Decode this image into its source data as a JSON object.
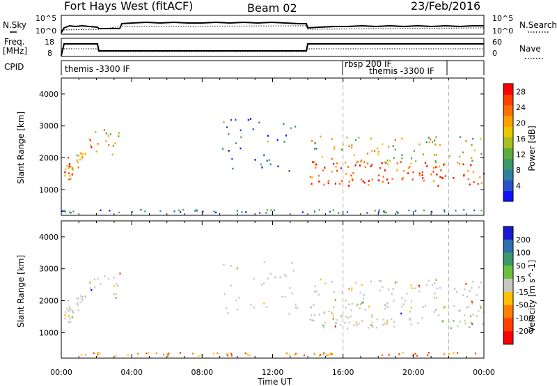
{
  "header": {
    "title": "Fort Hays West (fitACF)",
    "beam": "Beam 02",
    "date": "23/Feb/2016"
  },
  "noise_panel": {
    "left_label": "N.Sky",
    "left_ticks": [
      "10^5",
      "10^0"
    ],
    "right_label": "N.Search",
    "right_ticks": [
      "10^5",
      "10^0"
    ]
  },
  "freq_panel": {
    "left_label_1": "Freq.",
    "left_label_2": "[MHz]",
    "left_ticks": [
      "18",
      "8"
    ],
    "right_label": "Nave",
    "right_ticks": [
      "60",
      "0"
    ]
  },
  "cpid_panel": {
    "label": "CPID",
    "segments": [
      {
        "text": "themis -3300 IF",
        "start_hour": 0
      },
      {
        "text": "rbsp 200 IF",
        "start_hour": 16
      },
      {
        "text": "themis -3300 IF",
        "start_hour": 18
      }
    ]
  },
  "chart_data": [
    {
      "type": "heatmap",
      "name": "power",
      "ylabel": "Slant Range [km]",
      "xlabel": "Time UT",
      "x_ticks": [
        "00:00",
        "04:00",
        "08:00",
        "12:00",
        "16:00",
        "20:00",
        "00:00"
      ],
      "x_range_hours": [
        0,
        24
      ],
      "y_ticks": [
        1000,
        2000,
        3000,
        4000
      ],
      "ylim": [
        200,
        4500
      ],
      "colorbar": {
        "label": "Power [dB]",
        "ticks": [
          "4",
          "8",
          "12",
          "16",
          "20",
          "24",
          "28"
        ],
        "range": [
          0,
          30
        ],
        "colors": [
          "#1010ff",
          "#2a52c8",
          "#2f7fa0",
          "#3a9a6a",
          "#5cae3c",
          "#a8c020",
          "#e8c800",
          "#ffa000",
          "#ff7000",
          "#ff4000",
          "#ff0000"
        ]
      },
      "vertical_markers_hours": [
        16,
        22
      ],
      "regions": [
        {
          "t0": 0.0,
          "t1": 0.6,
          "r0": 1350,
          "r1": 2150,
          "level": 0.8
        },
        {
          "t0": 0.3,
          "t1": 1.8,
          "r0": 1500,
          "r1": 2700,
          "level": 0.7
        },
        {
          "t0": 1.8,
          "t1": 3.3,
          "r0": 2100,
          "r1": 2900,
          "level": 0.55
        },
        {
          "t0": 14.1,
          "t1": 24.0,
          "r0": 1150,
          "r1": 1900,
          "level": 0.9
        },
        {
          "t0": 14.1,
          "t1": 24.0,
          "r0": 1800,
          "r1": 2700,
          "level": 0.55
        },
        {
          "t0": 9.0,
          "t1": 13.5,
          "r0": 1600,
          "r1": 3300,
          "level": 0.25
        }
      ]
    },
    {
      "type": "heatmap",
      "name": "velocity",
      "ylabel": "Slant Range [km]",
      "xlabel": "Time UT",
      "x_ticks": [
        "00:00",
        "04:00",
        "08:00",
        "12:00",
        "16:00",
        "20:00",
        "00:00"
      ],
      "x_range_hours": [
        0,
        24
      ],
      "y_ticks": [
        1000,
        2000,
        3000,
        4000
      ],
      "ylim": [
        200,
        4500
      ],
      "colorbar": {
        "label": "Velocity [m s^-1]",
        "ticks": [
          "200",
          "100",
          "50",
          "15",
          "-15",
          "-50",
          "-100",
          "-200"
        ],
        "colors": [
          "#1818d0",
          "#2e6fb0",
          "#3a9a6a",
          "#6cc040",
          "#c8c8c0",
          "#ffc000",
          "#ff8000",
          "#ff4000",
          "#ff0000"
        ]
      },
      "vertical_markers_hours": [
        16,
        22
      ]
    }
  ]
}
